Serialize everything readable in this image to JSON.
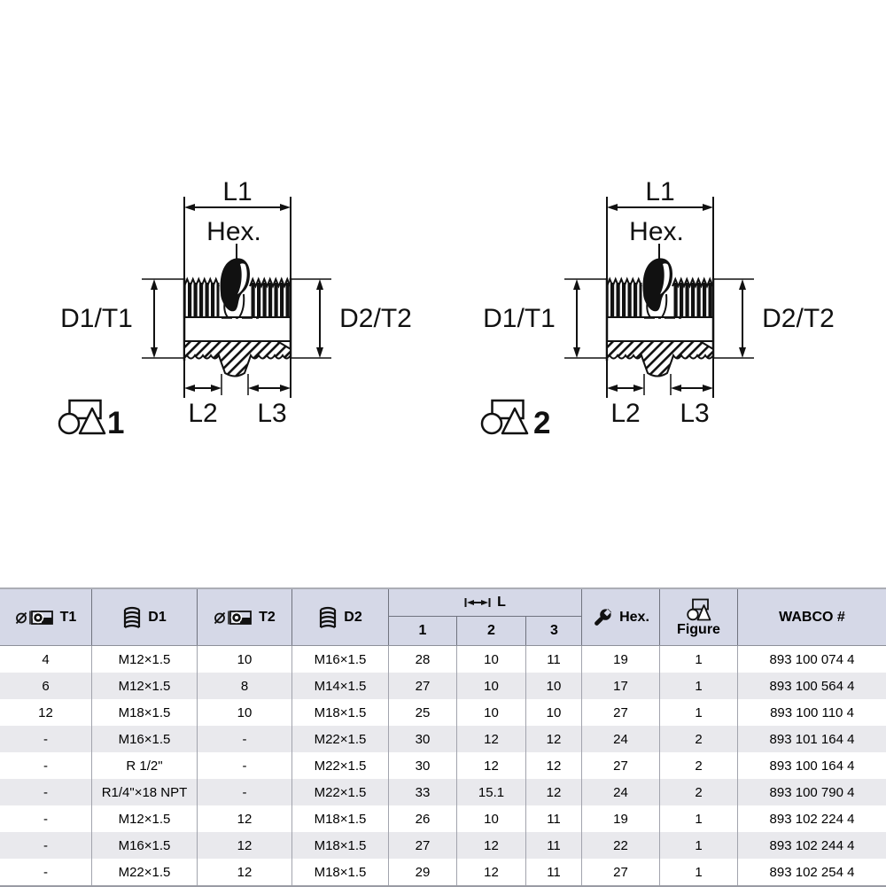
{
  "drawings": {
    "labels": {
      "l1": "L1",
      "hex": "Hex.",
      "d1t1": "D1/T1",
      "d2t2": "D2/T2",
      "l2": "L2",
      "l3": "L3"
    },
    "figures": [
      {
        "number": "1"
      },
      {
        "number": "2"
      }
    ]
  },
  "table": {
    "header": {
      "t1": "T1",
      "d1": "D1",
      "t2": "T2",
      "d2": "D2",
      "l_group": "L",
      "l_sub": [
        "1",
        "2",
        "3"
      ],
      "hex": "Hex.",
      "figure": "Figure",
      "wabco": "WABCO #"
    },
    "header_icons": [
      "tube-diameter-icon",
      "thread-icon",
      "tube-diameter-icon",
      "thread-icon",
      "length-arrow-icon",
      "wrench-icon",
      "circle-triangle-icon"
    ],
    "rows": [
      [
        "4",
        "M12×1.5",
        "10",
        "M16×1.5",
        "28",
        "10",
        "11",
        "19",
        "1",
        "893 100 074 4"
      ],
      [
        "6",
        "M12×1.5",
        "8",
        "M14×1.5",
        "27",
        "10",
        "10",
        "17",
        "1",
        "893 100 564 4"
      ],
      [
        "12",
        "M18×1.5",
        "10",
        "M18×1.5",
        "25",
        "10",
        "10",
        "27",
        "1",
        "893 100 110 4"
      ],
      [
        "-",
        "M16×1.5",
        "-",
        "M22×1.5",
        "30",
        "12",
        "12",
        "24",
        "2",
        "893 101 164 4"
      ],
      [
        "-",
        "R 1/2\"",
        "-",
        "M22×1.5",
        "30",
        "12",
        "12",
        "27",
        "2",
        "893 100 164 4"
      ],
      [
        "-",
        "R1/4\"×18 NPT",
        "-",
        "M22×1.5",
        "33",
        "15.1",
        "12",
        "24",
        "2",
        "893 100 790 4"
      ],
      [
        "-",
        "M12×1.5",
        "12",
        "M18×1.5",
        "26",
        "10",
        "11",
        "19",
        "1",
        "893 102 224 4"
      ],
      [
        "-",
        "M16×1.5",
        "12",
        "M18×1.5",
        "27",
        "12",
        "11",
        "22",
        "1",
        "893 102 244 4"
      ],
      [
        "-",
        "M22×1.5",
        "12",
        "M18×1.5",
        "29",
        "12",
        "11",
        "27",
        "1",
        "893 102 254 4"
      ]
    ]
  },
  "colors": {
    "header_bg": "#d5d8e7",
    "row_bg": "#ffffff",
    "row_alt_bg": "#e9e9ed",
    "header_separator": "#70737f",
    "row_separator": "#a2a4ad",
    "table_top_border": "#abadb5",
    "table_bottom_border": "#9a9ca4",
    "ink": "#111111",
    "text": "#000000"
  }
}
